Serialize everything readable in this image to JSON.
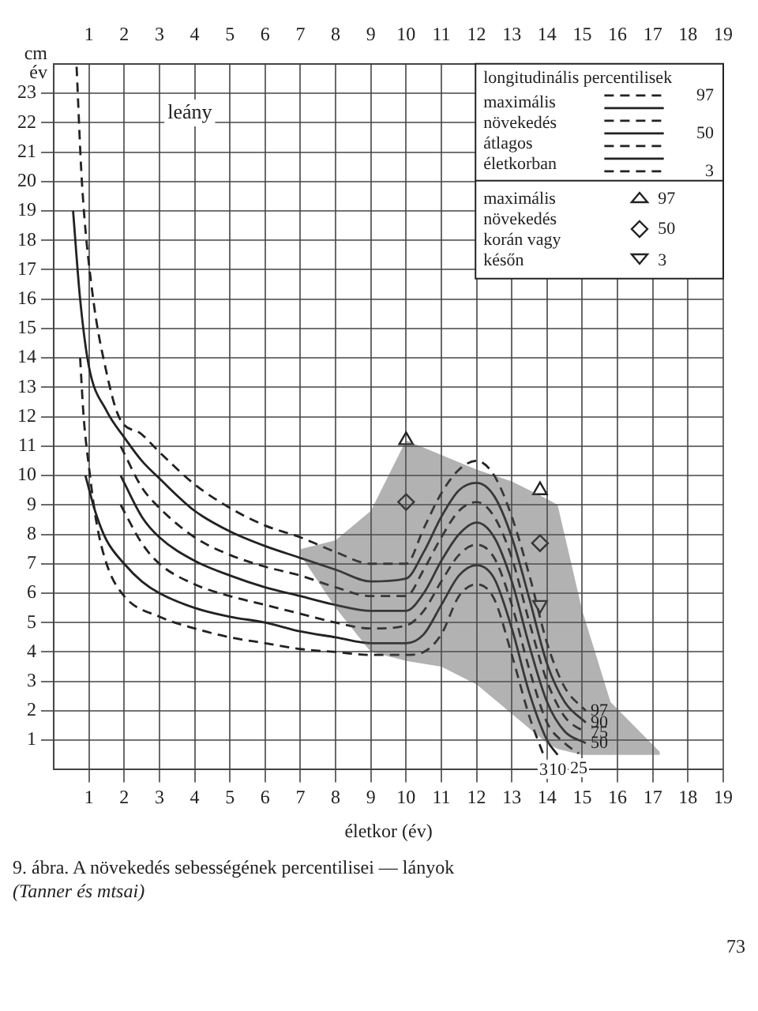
{
  "chart_data": {
    "type": "line",
    "xlabel": "életkor (év)",
    "ylabel": "cm\név",
    "legend_title": "longitudinális percentilisek",
    "legend": "top right",
    "grid": true,
    "xlim": [
      0,
      19
    ],
    "xticks": [
      1,
      2,
      3,
      4,
      5,
      6,
      7,
      8,
      9,
      10,
      11,
      12,
      13,
      14,
      15,
      16,
      17,
      18,
      19
    ],
    "x2lim": [
      0,
      19
    ],
    "x2ticks": [
      1,
      2,
      3,
      4,
      5,
      6,
      7,
      8,
      9,
      10,
      11,
      12,
      13,
      14,
      15,
      16,
      17,
      18,
      19
    ],
    "ylim": [
      0,
      24
    ],
    "yticks": [
      1,
      2,
      3,
      4,
      5,
      6,
      7,
      8,
      9,
      10,
      11,
      12,
      13,
      14,
      15,
      16,
      17,
      18,
      19,
      20,
      21,
      22,
      23
    ],
    "annotations": [
      "maximális növekedés átlagos életkorban",
      "maximális növekedés korán vagy későn",
      "leány",
      "9. ábra. A növekedés sebességének percentilisei — lányok",
      "(Tanner és mtsai)",
      "73"
    ],
    "series": [
      {
        "type": "area",
        "color": "#555555",
        "x": [
          7,
          8,
          9,
          10,
          11,
          12,
          13,
          14,
          14.3,
          15,
          15.8,
          17.2
        ],
        "values": [
          null,
          null,
          null,
          null,
          null,
          null,
          null,
          null,
          null,
          null,
          null,
          null
        ],
        "upper": [
          7.5,
          7.8,
          8.8,
          11.2,
          10.7,
          10.2,
          9.8,
          9.2,
          9.0,
          5.4,
          2.3,
          0.6
        ],
        "lower": [
          7.3,
          5.5,
          4.0,
          3.7,
          3.5,
          2.9,
          1.9,
          0.9,
          0.7,
          0.5,
          0.5,
          0.5
        ]
      },
      {
        "name": "97",
        "color": "#222222",
        "line_style": "dashed",
        "x": [
          0.65,
          0.8,
          1.1,
          1.5,
          1.85,
          2.5,
          3,
          4,
          5,
          6,
          7,
          8,
          9,
          10,
          10.5,
          11,
          11.5,
          12,
          12.5,
          13,
          13.5,
          14,
          14.5,
          15.1
        ],
        "values": [
          23.9,
          20,
          16.2,
          13.5,
          12,
          11.4,
          10.8,
          9.7,
          8.9,
          8.3,
          7.9,
          7.4,
          7.0,
          7.0,
          8.2,
          9.4,
          10.2,
          10.5,
          10.0,
          8.6,
          6.6,
          4.3,
          2.8,
          2.0
        ]
      },
      {
        "name": "90",
        "color": "#222222",
        "line_style": "solid",
        "x": [
          0.55,
          0.75,
          1,
          1.5,
          2,
          2.5,
          3,
          4,
          5,
          6,
          7,
          8,
          9,
          10,
          10.5,
          11,
          11.5,
          12,
          12.5,
          13,
          13.5,
          14,
          14.5,
          15.1
        ],
        "values": [
          19,
          16,
          13.7,
          12.2,
          11.3,
          10.5,
          9.9,
          8.8,
          8.1,
          7.6,
          7.2,
          6.8,
          6.4,
          6.5,
          7.4,
          8.6,
          9.5,
          9.75,
          9.3,
          7.9,
          5.8,
          3.6,
          2.3,
          1.6
        ]
      },
      {
        "name": "75",
        "color": "#222222",
        "line_style": "dashed",
        "x": [
          1.9,
          2.5,
          3,
          4,
          5,
          6,
          7,
          8,
          9,
          10,
          10.5,
          11,
          11.5,
          12,
          12.5,
          13,
          13.5,
          14,
          14.5,
          15.1
        ],
        "values": [
          11.0,
          9.6,
          8.9,
          7.9,
          7.3,
          6.9,
          6.6,
          6.2,
          5.9,
          5.9,
          6.8,
          7.9,
          8.8,
          9.1,
          8.6,
          7.2,
          5.0,
          3.0,
          1.8,
          1.25
        ]
      },
      {
        "name": "50",
        "color": "#222222",
        "line_style": "solid",
        "x": [
          1.9,
          2.5,
          3,
          4,
          5,
          6,
          7,
          8,
          9,
          10,
          10.5,
          11,
          11.5,
          12,
          12.5,
          13,
          13.5,
          14,
          14.5,
          15.1
        ],
        "values": [
          10.0,
          8.6,
          7.9,
          7.1,
          6.6,
          6.2,
          5.9,
          5.6,
          5.4,
          5.4,
          6.0,
          7.1,
          8.0,
          8.4,
          7.9,
          6.4,
          4.2,
          2.3,
          1.3,
          0.9
        ]
      },
      {
        "name": "25",
        "color": "#222222",
        "line_style": "dashed",
        "x": [
          1.9,
          2.5,
          3,
          4,
          5,
          6,
          7,
          8,
          9,
          10,
          10.5,
          11,
          11.5,
          12,
          12.5,
          13,
          13.5,
          14,
          14.5,
          14.9
        ],
        "values": [
          9.0,
          7.7,
          7.0,
          6.3,
          5.9,
          5.6,
          5.3,
          5.0,
          4.8,
          4.9,
          5.4,
          6.4,
          7.3,
          7.65,
          7.2,
          5.6,
          3.4,
          1.6,
          0.9,
          0.55
        ]
      },
      {
        "name": "10",
        "color": "#222222",
        "line_style": "solid",
        "x": [
          0.9,
          1.2,
          1.5,
          2,
          2.5,
          3,
          4,
          5,
          6,
          7,
          8,
          9,
          10,
          10.5,
          11,
          11.5,
          12,
          12.5,
          13,
          13.5,
          14,
          14.3
        ],
        "values": [
          10.0,
          8.7,
          7.8,
          7.0,
          6.4,
          6.0,
          5.5,
          5.2,
          5.0,
          4.7,
          4.5,
          4.3,
          4.3,
          4.6,
          5.6,
          6.6,
          6.95,
          6.5,
          4.8,
          2.6,
          1.0,
          0.5
        ]
      },
      {
        "name": "3",
        "color": "#222222",
        "line_style": "dashed",
        "x": [
          0.75,
          0.85,
          1,
          1.2,
          1.5,
          2,
          3,
          4,
          5,
          6,
          7,
          8,
          9,
          10,
          10.5,
          11,
          11.5,
          12,
          12.5,
          13,
          13.5,
          13.9
        ],
        "values": [
          14,
          12,
          10.3,
          8.5,
          7.0,
          5.9,
          5.2,
          4.8,
          4.5,
          4.3,
          4.1,
          4.0,
          3.9,
          3.9,
          4.0,
          4.6,
          5.9,
          6.3,
          5.8,
          3.9,
          1.8,
          0.5
        ]
      },
      {
        "type": "scatter",
        "name": "97",
        "color": "#222222",
        "marker": "triangle",
        "x": [
          10,
          13.8
        ],
        "values": [
          11.2,
          9.5
        ]
      },
      {
        "type": "scatter",
        "name": "50",
        "color": "#222222",
        "marker": "diamond",
        "x": [
          10,
          13.8
        ],
        "values": [
          9.1,
          7.7
        ]
      },
      {
        "type": "scatter",
        "name": "3",
        "color": "#222222",
        "marker": "triangle-down",
        "x": [
          13.8
        ],
        "values": [
          5.6
        ]
      }
    ]
  }
}
